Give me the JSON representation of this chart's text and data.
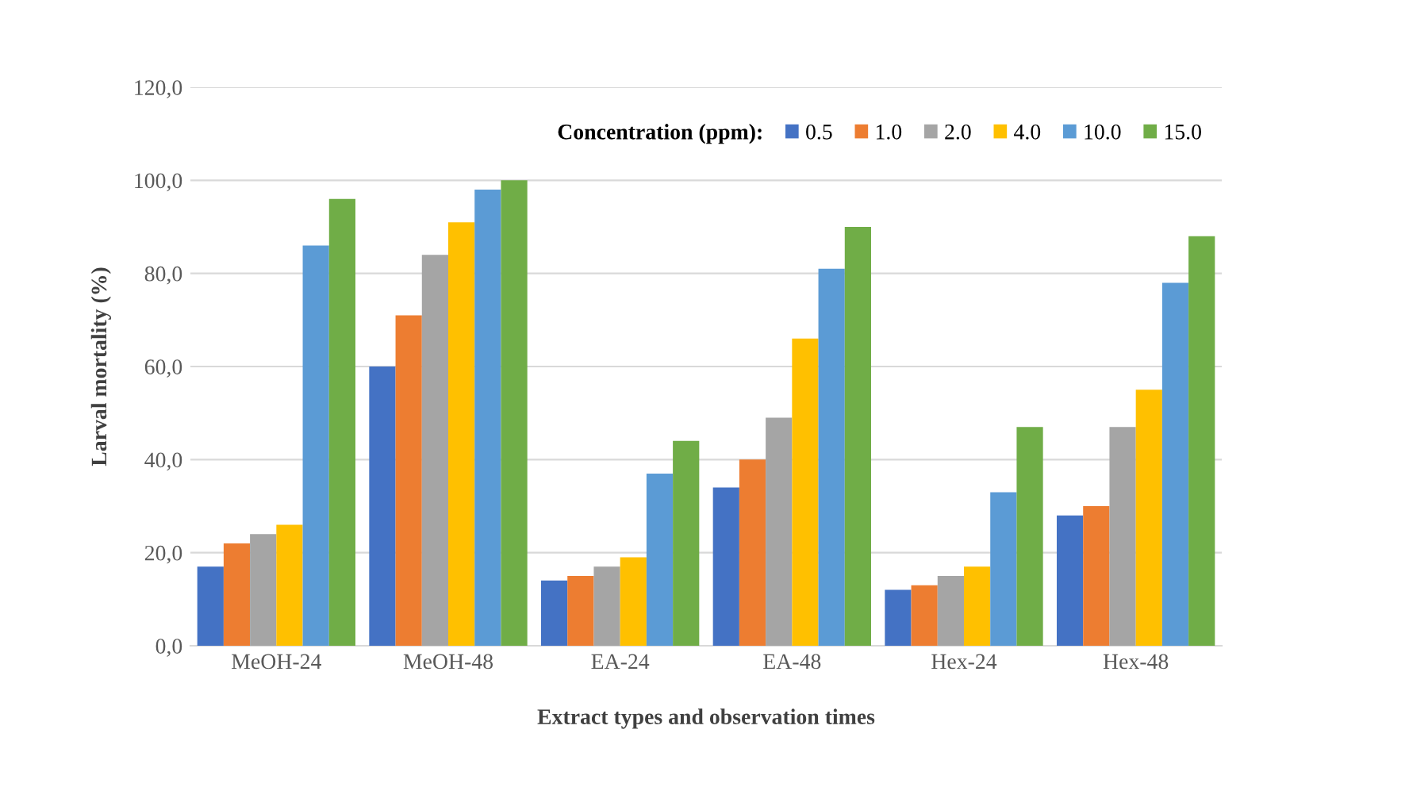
{
  "chart_data": {
    "type": "bar",
    "xlabel": "Extract types and observation times",
    "ylabel": "Larval mortality (%)",
    "legend_title": "Concentration (ppm):",
    "categories": [
      "MeOH-24",
      "MeOH-48",
      "EA-24",
      "EA-48",
      "Hex-24",
      "Hex-48"
    ],
    "series": [
      {
        "name": "0.5",
        "color": "#4472c4",
        "values": [
          17,
          60,
          14,
          34,
          12,
          28
        ]
      },
      {
        "name": "1.0",
        "color": "#ed7d31",
        "values": [
          22,
          71,
          15,
          40,
          13,
          30
        ]
      },
      {
        "name": "2.0",
        "color": "#a5a5a5",
        "values": [
          24,
          84,
          17,
          49,
          15,
          47
        ]
      },
      {
        "name": "4.0",
        "color": "#ffc000",
        "values": [
          26,
          91,
          19,
          66,
          17,
          55
        ]
      },
      {
        "name": "10.0",
        "color": "#5b9bd5",
        "values": [
          86,
          98,
          37,
          81,
          33,
          78
        ]
      },
      {
        "name": "15.0",
        "color": "#70ad47",
        "values": [
          96,
          100,
          44,
          90,
          47,
          88
        ]
      }
    ],
    "ylim": [
      0,
      120
    ],
    "yticks": [
      {
        "value": 0,
        "label": "0,0"
      },
      {
        "value": 20,
        "label": "20,0"
      },
      {
        "value": 40,
        "label": "40,0"
      },
      {
        "value": 60,
        "label": "60,0"
      },
      {
        "value": 80,
        "label": "80,0"
      },
      {
        "value": 100,
        "label": "100,0"
      },
      {
        "value": 120,
        "label": "120,0"
      }
    ],
    "grid": "y",
    "legend": "top right"
  }
}
